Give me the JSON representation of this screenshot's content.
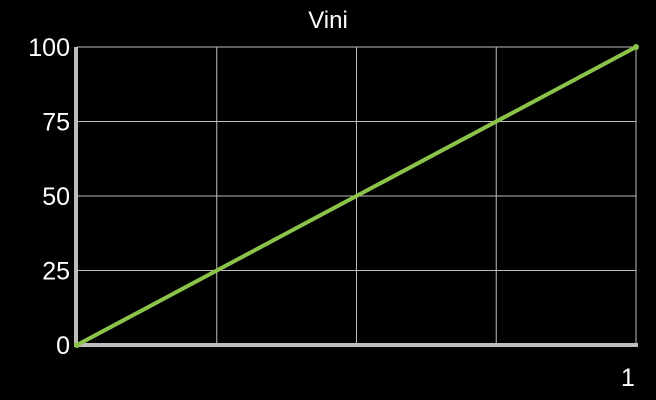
{
  "chart_data": {
    "type": "line",
    "title": "Vini",
    "xlabel": "",
    "ylabel": "",
    "x": [
      0,
      1
    ],
    "xlim": [
      0,
      1
    ],
    "ylim": [
      0,
      100
    ],
    "y_ticks": [
      0,
      25,
      50,
      75,
      100
    ],
    "x_tick_labels": [
      "1"
    ],
    "x_grid_divisions": 4,
    "grid": true,
    "legend": "none",
    "series": [
      {
        "values": [
          0,
          100
        ],
        "color": "#8bc34a"
      }
    ],
    "colors": {
      "background": "#000000",
      "grid": "#bdbdbd",
      "axis": "#bdbdbd",
      "text": "#ffffff"
    }
  }
}
